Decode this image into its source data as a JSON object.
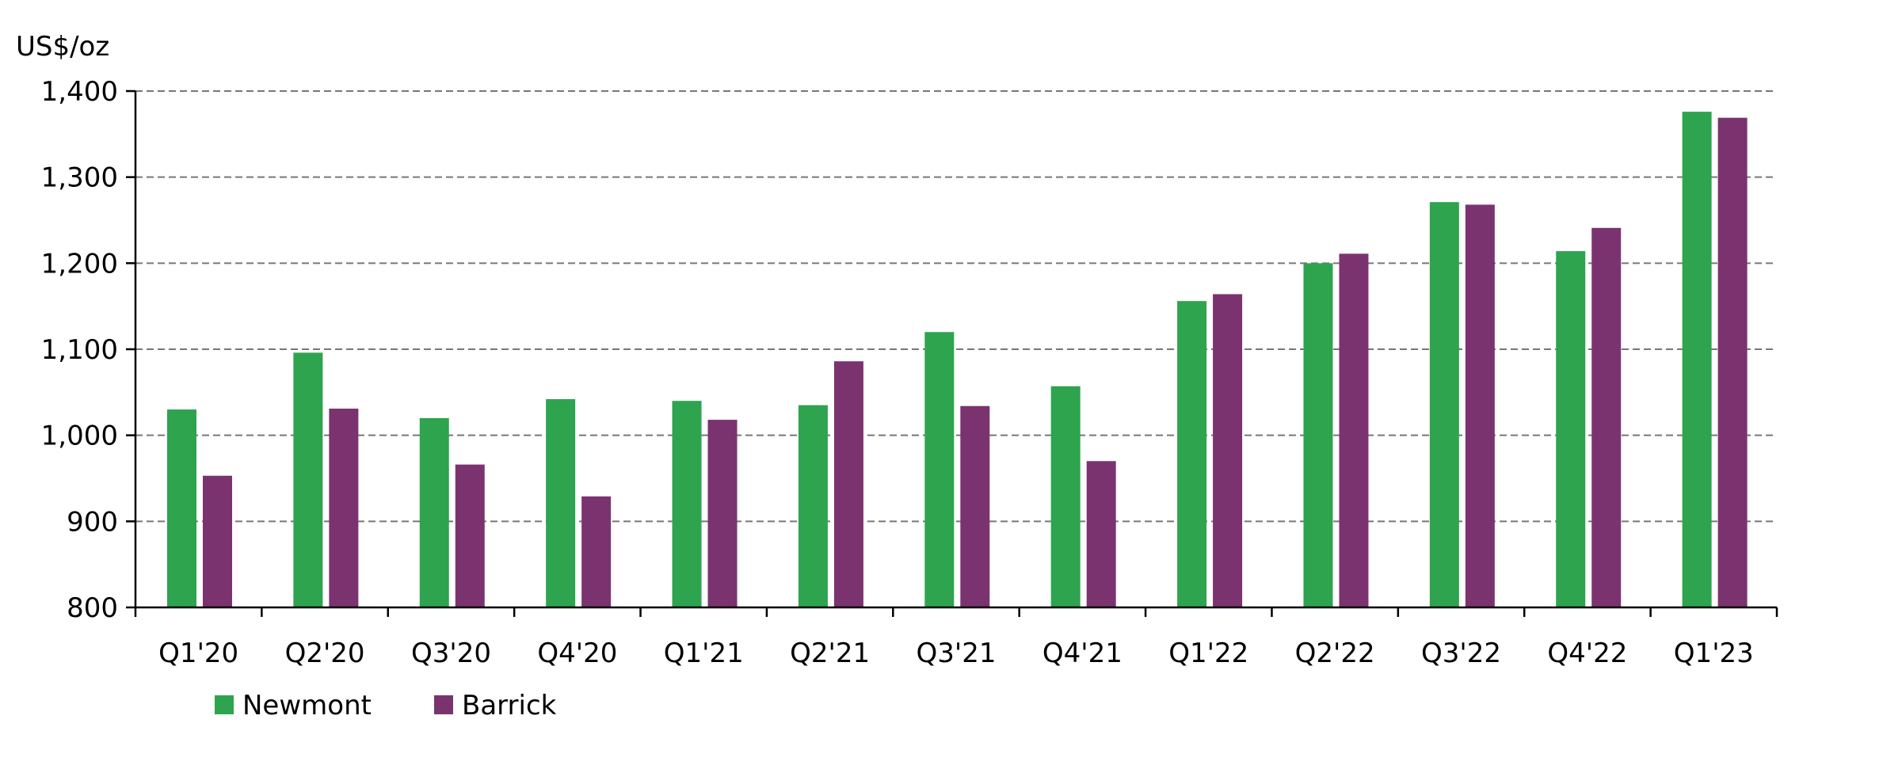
{
  "chart_data": {
    "type": "bar",
    "title": "",
    "ylabel": "US$/oz",
    "xlabel": "",
    "ylim": [
      800,
      1400
    ],
    "yticks": [
      800,
      900,
      1000,
      1100,
      1200,
      1300,
      1400
    ],
    "ytick_labels": [
      "800",
      "900",
      "1,000",
      "1,100",
      "1,200",
      "1,300",
      "1,400"
    ],
    "grid": "horizontal dashed",
    "legend_position": "bottom-left",
    "categories": [
      "Q1'20",
      "Q2'20",
      "Q3'20",
      "Q4'20",
      "Q1'21",
      "Q2'21",
      "Q3'21",
      "Q4'21",
      "Q1'22",
      "Q2'22",
      "Q3'22",
      "Q4'22",
      "Q1'23"
    ],
    "series": [
      {
        "name": "Newmont",
        "color": "#2ea44f",
        "values": [
          1030,
          1096,
          1020,
          1042,
          1040,
          1035,
          1120,
          1057,
          1156,
          1200,
          1271,
          1214,
          1376
        ]
      },
      {
        "name": "Barrick",
        "color": "#7b3370",
        "values": [
          953,
          1031,
          966,
          929,
          1018,
          1086,
          1034,
          970,
          1164,
          1211,
          1268,
          1241,
          1369
        ]
      }
    ]
  }
}
